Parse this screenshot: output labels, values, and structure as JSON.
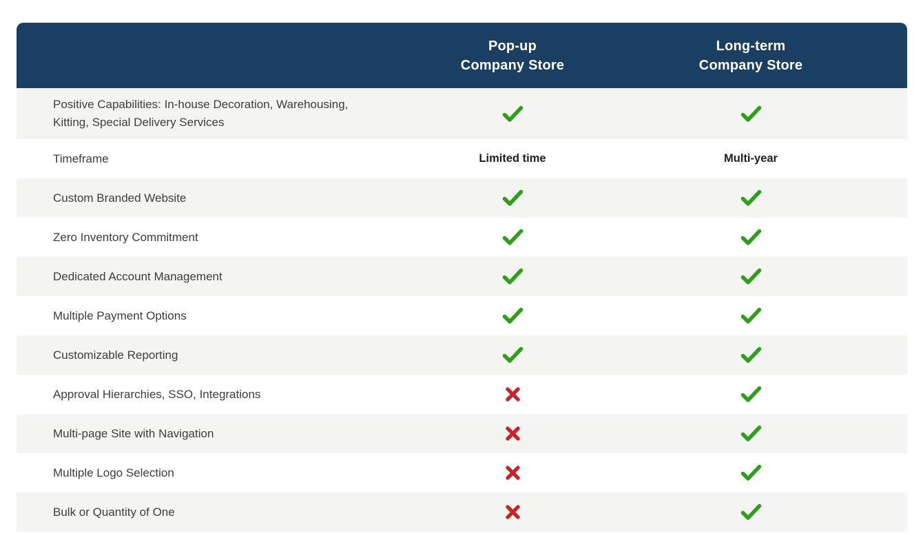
{
  "colors": {
    "header_bg": "#1b3e63",
    "header_text": "#ffffff",
    "row_alt_bg": "#f4f4f2",
    "row_bg": "#ffffff",
    "label_text": "#3d3d3c",
    "value_text": "#1f1f1f",
    "check_green": "#2e9e1b",
    "cross_red": "#c5242b"
  },
  "icons": {
    "check": "check-icon",
    "cross": "cross-icon"
  },
  "table": {
    "columns": [
      {
        "line1": "Pop-up",
        "line2": "Company Store"
      },
      {
        "line1": "Long-term",
        "line2": "Company Store"
      }
    ],
    "rows": [
      {
        "label": "Positive Capabilities: In-house Decoration, Warehousing, Kitting, Special Delivery Services",
        "popup": "check",
        "longterm": "check"
      },
      {
        "label": "Timeframe",
        "popup": "Limited time",
        "longterm": "Multi-year"
      },
      {
        "label": "Custom Branded Website",
        "popup": "check",
        "longterm": "check"
      },
      {
        "label": "Zero Inventory Commitment",
        "popup": "check",
        "longterm": "check"
      },
      {
        "label": "Dedicated Account Management",
        "popup": "check",
        "longterm": "check"
      },
      {
        "label": "Multiple Payment Options",
        "popup": "check",
        "longterm": "check"
      },
      {
        "label": "Customizable Reporting",
        "popup": "check",
        "longterm": "check"
      },
      {
        "label": "Approval Hierarchies, SSO, Integrations",
        "popup": "cross",
        "longterm": "check"
      },
      {
        "label": "Multi-page Site with Navigation",
        "popup": "cross",
        "longterm": "check"
      },
      {
        "label": "Multiple Logo Selection",
        "popup": "cross",
        "longterm": "check"
      },
      {
        "label": "Bulk or Quantity of One",
        "popup": "cross",
        "longterm": "check"
      }
    ]
  },
  "chart_data": {
    "type": "table",
    "title": "",
    "columns": [
      "",
      "Pop-up Company Store",
      "Long-term Company Store"
    ],
    "rows": [
      [
        "Positive Capabilities: In-house Decoration, Warehousing, Kitting, Special Delivery Services",
        "yes",
        "yes"
      ],
      [
        "Timeframe",
        "Limited time",
        "Multi-year"
      ],
      [
        "Custom Branded Website",
        "yes",
        "yes"
      ],
      [
        "Zero Inventory Commitment",
        "yes",
        "yes"
      ],
      [
        "Dedicated Account Management",
        "yes",
        "yes"
      ],
      [
        "Multiple Payment Options",
        "yes",
        "yes"
      ],
      [
        "Customizable Reporting",
        "yes",
        "yes"
      ],
      [
        "Approval Hierarchies, SSO, Integrations",
        "no",
        "yes"
      ],
      [
        "Multi-page Site with Navigation",
        "no",
        "yes"
      ],
      [
        "Multiple Logo Selection",
        "no",
        "yes"
      ],
      [
        "Bulk or Quantity of One",
        "no",
        "yes"
      ]
    ]
  }
}
